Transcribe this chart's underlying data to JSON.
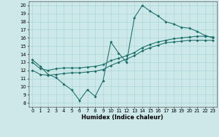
{
  "title": "",
  "xlabel": "Humidex (Indice chaleur)",
  "bg_color": "#cce8e8",
  "line_color": "#1a6e6a",
  "xlim": [
    -0.5,
    23.5
  ],
  "ylim": [
    7.5,
    20.5
  ],
  "xticks": [
    0,
    1,
    2,
    3,
    4,
    5,
    6,
    7,
    8,
    9,
    10,
    11,
    12,
    13,
    14,
    15,
    16,
    17,
    18,
    19,
    20,
    21,
    22,
    23
  ],
  "yticks": [
    8,
    9,
    10,
    11,
    12,
    13,
    14,
    15,
    16,
    17,
    18,
    19,
    20
  ],
  "line1_x": [
    0,
    1,
    2,
    3,
    4,
    5,
    6,
    7,
    8,
    9,
    10,
    11,
    12,
    13,
    14,
    15,
    16,
    17,
    18,
    19,
    20,
    21,
    22,
    23
  ],
  "line1_y": [
    13.3,
    12.5,
    11.5,
    11.1,
    10.3,
    9.6,
    8.3,
    9.6,
    8.8,
    10.7,
    15.5,
    14.1,
    13.0,
    18.5,
    20.0,
    19.3,
    18.7,
    18.0,
    17.7,
    17.3,
    17.2,
    16.8,
    16.3,
    16.0
  ],
  "line2_x": [
    0,
    1,
    2,
    3,
    4,
    5,
    6,
    7,
    8,
    9,
    10,
    11,
    12,
    13,
    14,
    15,
    16,
    17,
    18,
    19,
    20,
    21,
    22,
    23
  ],
  "line2_y": [
    13.0,
    12.2,
    12.0,
    12.2,
    12.3,
    12.3,
    12.3,
    12.4,
    12.5,
    12.7,
    13.2,
    13.5,
    13.8,
    14.2,
    14.8,
    15.2,
    15.5,
    15.7,
    15.9,
    16.0,
    16.1,
    16.2,
    16.2,
    16.1
  ],
  "line3_x": [
    0,
    1,
    2,
    3,
    4,
    5,
    6,
    7,
    8,
    9,
    10,
    11,
    12,
    13,
    14,
    15,
    16,
    17,
    18,
    19,
    20,
    21,
    22,
    23
  ],
  "line3_y": [
    12.0,
    11.5,
    11.4,
    11.5,
    11.6,
    11.7,
    11.7,
    11.8,
    11.9,
    12.1,
    12.6,
    13.0,
    13.4,
    13.8,
    14.4,
    14.8,
    15.1,
    15.4,
    15.5,
    15.6,
    15.7,
    15.7,
    15.7,
    15.7
  ],
  "xlabel_fontsize": 6.0,
  "tick_fontsize": 5.0,
  "grid_color": "#aad4d4",
  "spine_color": "#666666"
}
